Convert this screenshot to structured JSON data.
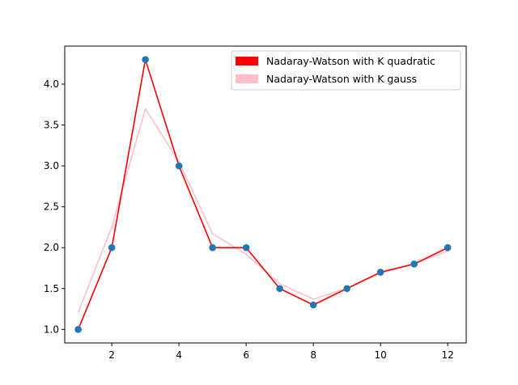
{
  "chart_data": {
    "type": "line",
    "title": "",
    "xlabel": "",
    "ylabel": "",
    "xlim": [
      0.6,
      12.55
    ],
    "ylim": [
      0.835,
      4.465
    ],
    "xticks": [
      2,
      4,
      6,
      8,
      10,
      12
    ],
    "yticks": [
      1.0,
      1.5,
      2.0,
      2.5,
      3.0,
      3.5,
      4.0
    ],
    "grid": false,
    "legend_position": "top-right",
    "scatter": {
      "color": "#1f77b4",
      "x": [
        1,
        2,
        3,
        4,
        5,
        6,
        7,
        8,
        9,
        10,
        11,
        12
      ],
      "y": [
        1.0,
        2.0,
        4.3,
        3.0,
        2.0,
        2.0,
        1.5,
        1.3,
        1.5,
        1.7,
        1.8,
        2.0
      ]
    },
    "series": [
      {
        "name": "Nadaray-Watson with K quadratic",
        "color": "#ff0000",
        "x": [
          1,
          2,
          3,
          4,
          5,
          6,
          7,
          8,
          9,
          10,
          11,
          12
        ],
        "y": [
          1.0,
          2.0,
          4.3,
          3.0,
          2.0,
          2.0,
          1.5,
          1.3,
          1.5,
          1.7,
          1.8,
          2.0
        ]
      },
      {
        "name": "Nadaray-Watson with K gauss",
        "color": "#ffc0cb",
        "x": [
          1,
          2,
          3,
          4,
          5,
          6,
          7,
          8,
          9,
          10,
          11,
          12
        ],
        "y": [
          1.21,
          2.25,
          3.7,
          3.05,
          2.17,
          1.92,
          1.56,
          1.37,
          1.5,
          1.69,
          1.8,
          1.96
        ]
      }
    ]
  }
}
